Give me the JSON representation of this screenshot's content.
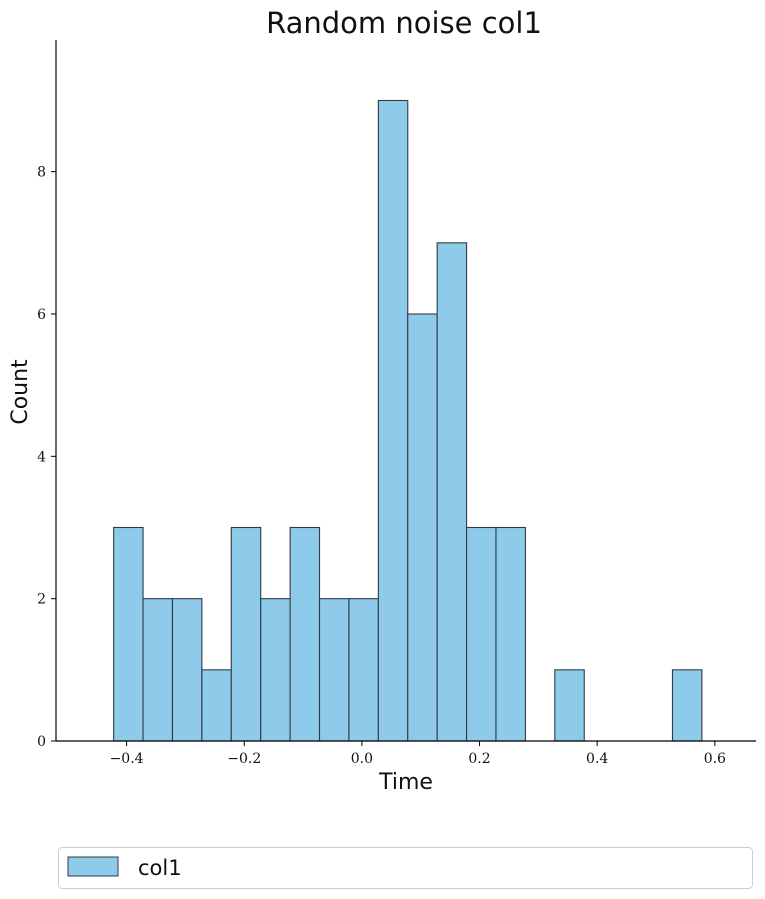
{
  "chart_data": {
    "type": "bar",
    "subtype": "histogram",
    "title": "Random noise col1",
    "xlabel": "Time",
    "ylabel": "Count",
    "xlim": [
      -0.52,
      0.67
    ],
    "ylim": [
      0,
      9.85
    ],
    "xticks": [
      -0.4,
      -0.2,
      0.0,
      0.2,
      0.4,
      0.6
    ],
    "xtick_labels": [
      "−0.4",
      "−0.2",
      "0.0",
      "0.2",
      "0.4",
      "0.6"
    ],
    "yticks": [
      0,
      2,
      4,
      6,
      8
    ],
    "ytick_labels": [
      "0",
      "2",
      "4",
      "6",
      "8"
    ],
    "bin_edges": [
      -0.422,
      -0.372,
      -0.322,
      -0.272,
      -0.222,
      -0.172,
      -0.122,
      -0.072,
      -0.022,
      0.028,
      0.078,
      0.128,
      0.178,
      0.228,
      0.278,
      0.328,
      0.378,
      0.428,
      0.478,
      0.528,
      0.578
    ],
    "counts": [
      3,
      2,
      2,
      1,
      3,
      2,
      3,
      2,
      2,
      9,
      6,
      7,
      3,
      3,
      0,
      1,
      0,
      0,
      0,
      1
    ],
    "series": [
      {
        "name": "col1",
        "color": "#8ECBEA",
        "edgecolor": "#2f3b42"
      }
    ],
    "grid": false,
    "legend": {
      "placement": "bottom",
      "entries": [
        "col1"
      ]
    }
  }
}
